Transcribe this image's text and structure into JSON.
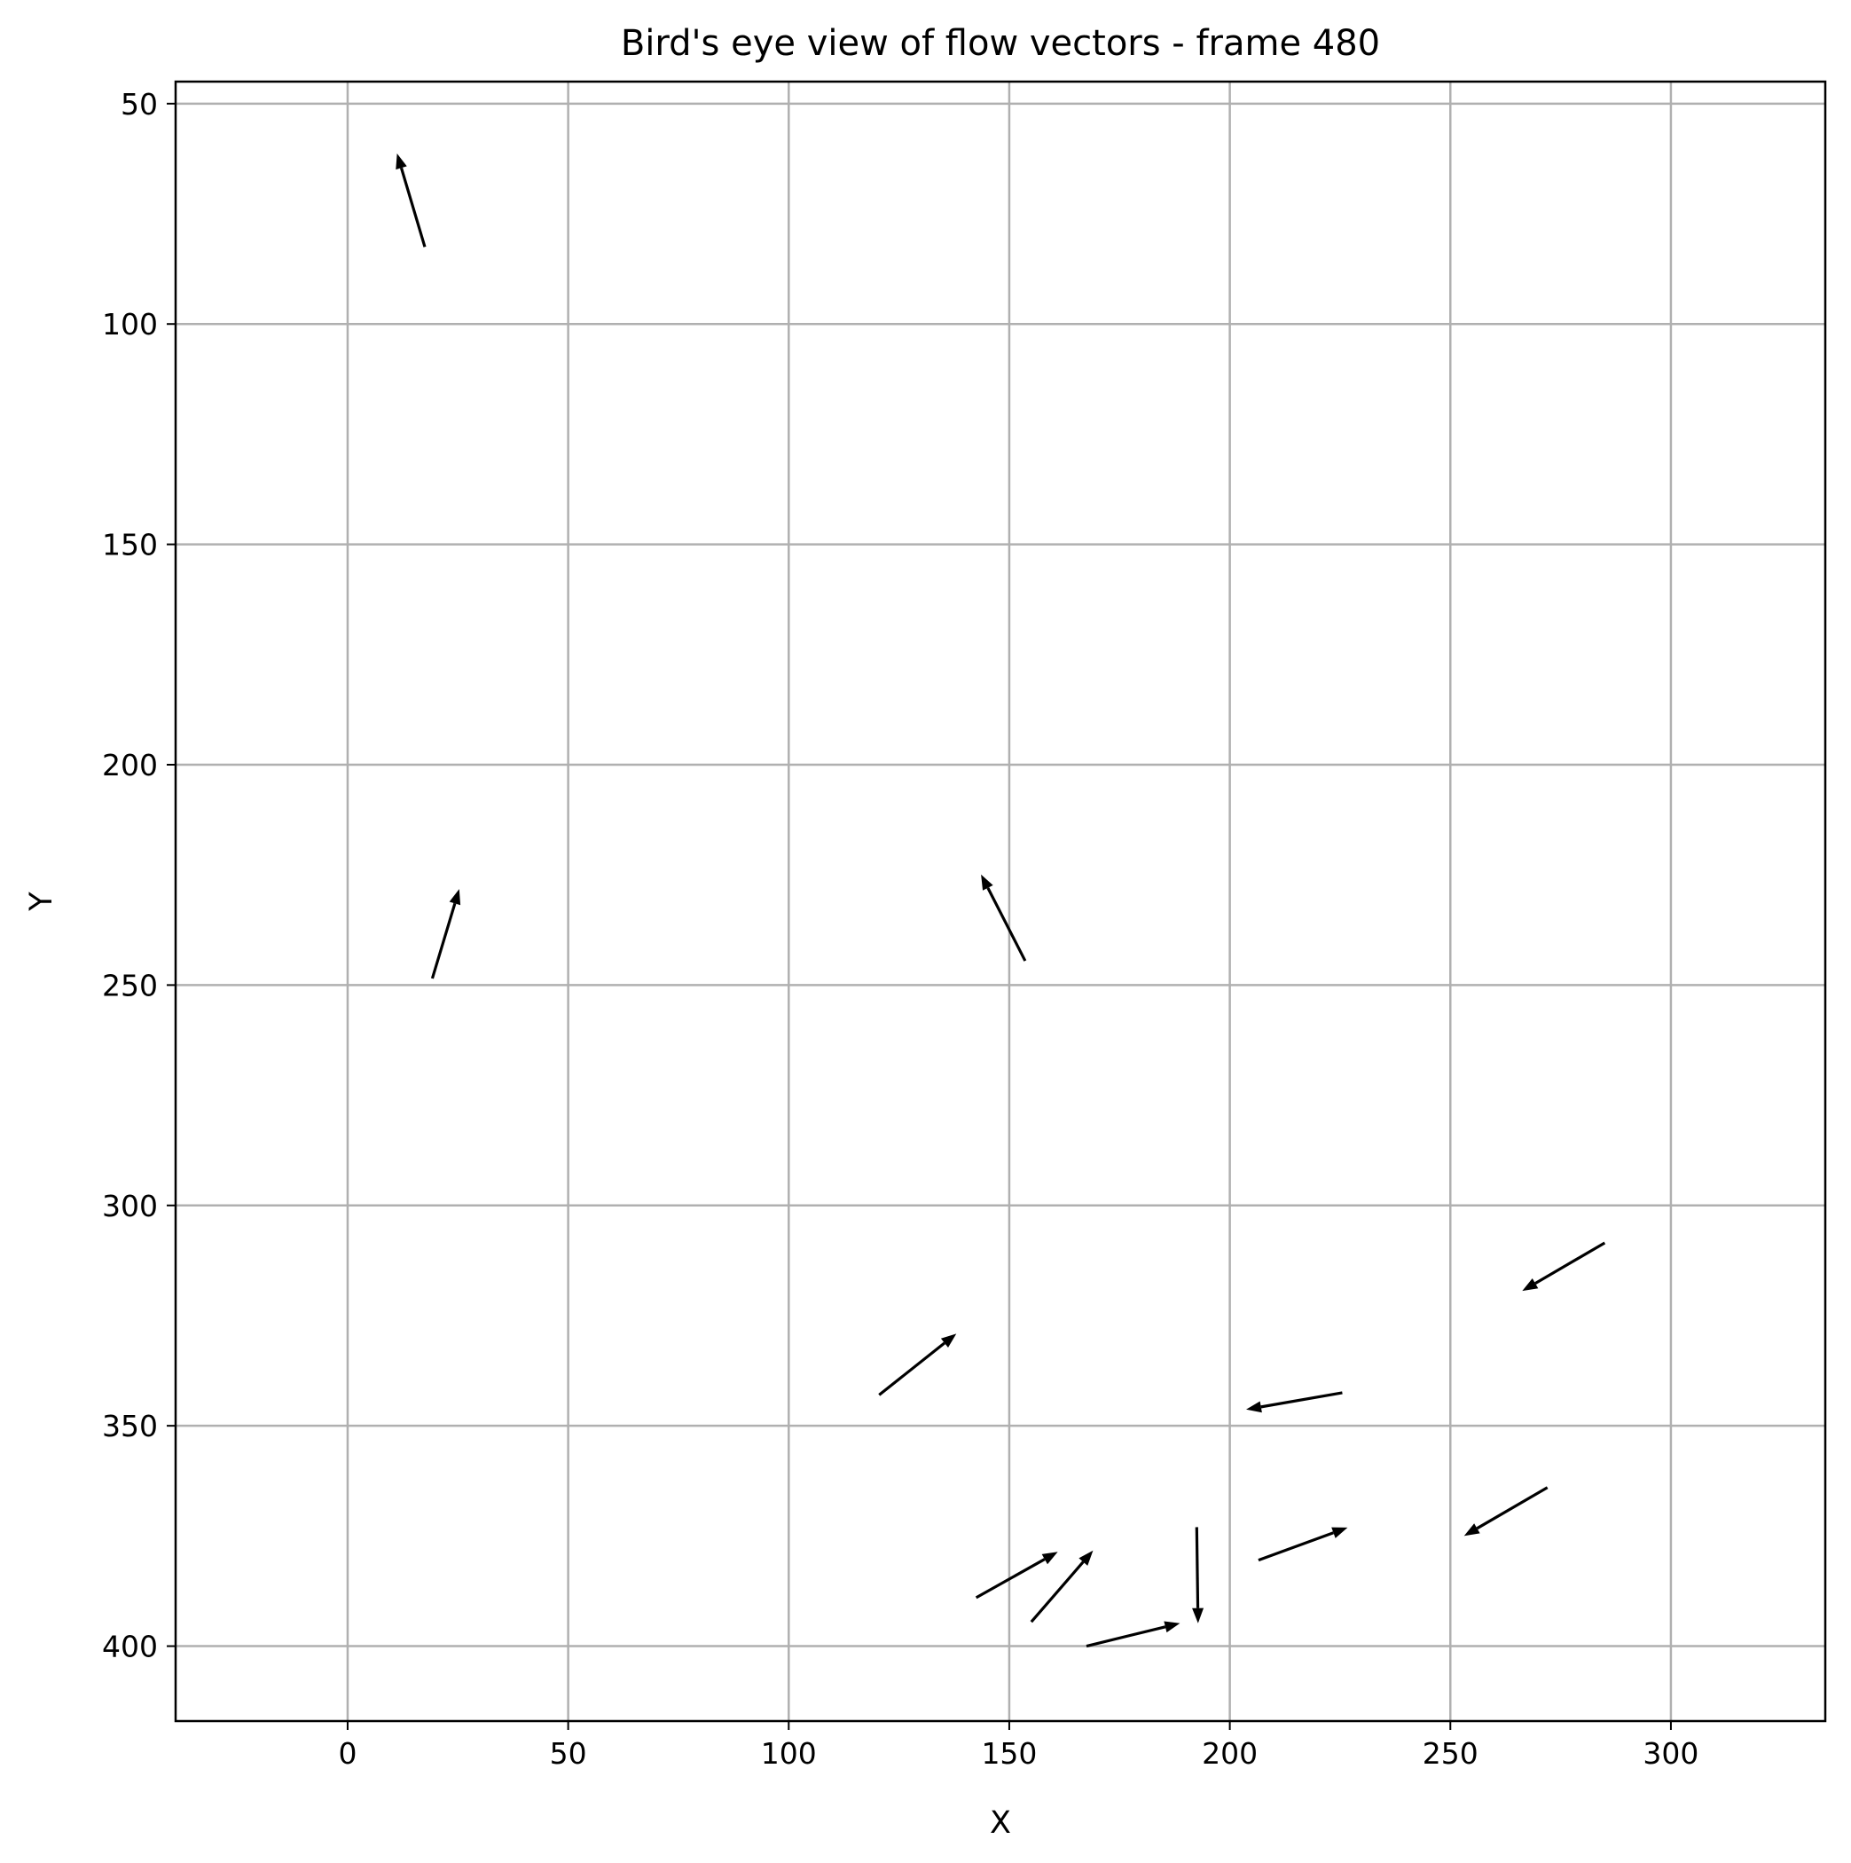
{
  "chart_data": {
    "type": "quiver",
    "title": "Bird's eye view of flow vectors - frame 480",
    "xlabel": "X",
    "ylabel": "Y",
    "xlim": [
      -39,
      335
    ],
    "ylim": [
      417,
      45
    ],
    "y_inverted": true,
    "grid": true,
    "x_ticks": [
      0,
      50,
      100,
      150,
      200,
      250,
      300
    ],
    "y_ticks": [
      50,
      100,
      150,
      200,
      250,
      300,
      350,
      400
    ],
    "vectors": [
      {
        "x": 17.5,
        "y": 82.5,
        "u": -6.3,
        "v": -21.2
      },
      {
        "x": 19.2,
        "y": 248.5,
        "u": 6.1,
        "v": -20.3
      },
      {
        "x": 153.6,
        "y": 244.5,
        "u": -10.0,
        "v": -19.6
      },
      {
        "x": 120.5,
        "y": 343.0,
        "u": 17.5,
        "v": -13.9
      },
      {
        "x": 285.0,
        "y": 308.5,
        "u": -18.7,
        "v": 10.9
      },
      {
        "x": 225.5,
        "y": 342.5,
        "u": -21.8,
        "v": 3.8
      },
      {
        "x": 272.0,
        "y": 364.0,
        "u": -18.9,
        "v": 11.0
      },
      {
        "x": 206.5,
        "y": 380.5,
        "u": 20.2,
        "v": -7.4
      },
      {
        "x": 192.5,
        "y": 373.0,
        "u": 0.3,
        "v": 21.8
      },
      {
        "x": 142.5,
        "y": 389.0,
        "u": 18.5,
        "v": -10.4
      },
      {
        "x": 155.0,
        "y": 394.5,
        "u": 14.0,
        "v": -16.2
      },
      {
        "x": 167.5,
        "y": 400.0,
        "u": 21.2,
        "v": -5.2
      }
    ]
  }
}
